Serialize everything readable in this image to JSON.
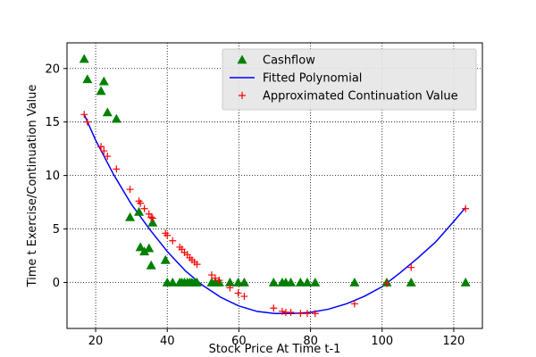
{
  "chart_data": {
    "type": "scatter",
    "title": "",
    "xlabel": "Stock Price At Time t-1",
    "ylabel": "Time t Exercise/Continuation Value",
    "xlim": [
      12,
      128
    ],
    "ylim": [
      -4.3,
      22.4
    ],
    "xticks": [
      20,
      40,
      60,
      80,
      100,
      120
    ],
    "yticks": [
      0,
      5,
      10,
      15,
      20
    ],
    "grid": true,
    "legend": {
      "placement": "top-right"
    },
    "series": [
      {
        "name": "Cashflow",
        "kind": "marker",
        "marker": "triangle",
        "color": "#008000",
        "x": [
          16.8,
          17.7,
          21.5,
          22.3,
          23.3,
          25.8,
          29.6,
          32.1,
          32.5,
          33.6,
          34.9,
          35.5,
          35.9,
          39.5,
          40.0,
          41.5,
          43.5,
          44.1,
          44.8,
          45.6,
          46.3,
          46.9,
          47.6,
          48.3,
          52.4,
          53.4,
          54.5,
          57.5,
          59.8,
          61.5,
          69.7,
          72.1,
          73.1,
          74.5,
          77.2,
          79.1,
          81.3,
          92.3,
          101.3,
          108.1,
          123.3
        ],
        "y": [
          20.9,
          19.0,
          17.9,
          18.8,
          15.9,
          15.3,
          6.1,
          6.6,
          3.3,
          2.9,
          3.2,
          1.6,
          5.6,
          2.1,
          0,
          0,
          0,
          0,
          0,
          0,
          0,
          0,
          0,
          0,
          0,
          0,
          0,
          0,
          0,
          0,
          0,
          0,
          0,
          0,
          0,
          0,
          0,
          0,
          0,
          0,
          0
        ]
      },
      {
        "name": "Fitted Polynomial",
        "kind": "line",
        "color": "#0000ff",
        "x": [
          16.8,
          20,
          25,
          30,
          35,
          40,
          45,
          50,
          55,
          60,
          65,
          70,
          75,
          80,
          85,
          90,
          95,
          100,
          105,
          110,
          115,
          120,
          123.3
        ],
        "y": [
          15.7,
          13.3,
          10.1,
          7.3,
          5.0,
          2.9,
          1.1,
          -0.3,
          -1.4,
          -2.2,
          -2.7,
          -2.9,
          -2.9,
          -2.8,
          -2.5,
          -2.0,
          -1.3,
          -0.4,
          0.9,
          2.3,
          3.8,
          5.7,
          7.0
        ]
      },
      {
        "name": "Approximated Continuation Value",
        "kind": "marker",
        "marker": "plus",
        "color": "#ff0000",
        "x": [
          16.8,
          17.7,
          21.5,
          22.3,
          23.3,
          25.8,
          29.6,
          32.1,
          32.5,
          33.6,
          34.9,
          35.5,
          35.9,
          39.5,
          40.0,
          41.5,
          43.5,
          44.1,
          44.8,
          45.6,
          46.3,
          46.9,
          47.6,
          48.3,
          52.4,
          53.4,
          54.5,
          57.5,
          59.8,
          61.5,
          69.7,
          72.1,
          73.1,
          74.5,
          77.2,
          79.1,
          81.3,
          92.3,
          101.3,
          108.1,
          123.3
        ],
        "y": [
          15.7,
          15.0,
          12.7,
          12.3,
          11.8,
          10.6,
          8.7,
          7.6,
          7.4,
          6.9,
          6.4,
          6.1,
          6.0,
          4.6,
          4.4,
          3.9,
          3.3,
          3.1,
          2.8,
          2.6,
          2.3,
          2.1,
          1.9,
          1.7,
          0.7,
          0.4,
          0.2,
          -0.5,
          -1.0,
          -1.3,
          -2.4,
          -2.7,
          -2.8,
          -2.8,
          -2.9,
          -2.9,
          -2.9,
          -2.0,
          -0.1,
          1.4,
          6.9
        ]
      }
    ]
  }
}
